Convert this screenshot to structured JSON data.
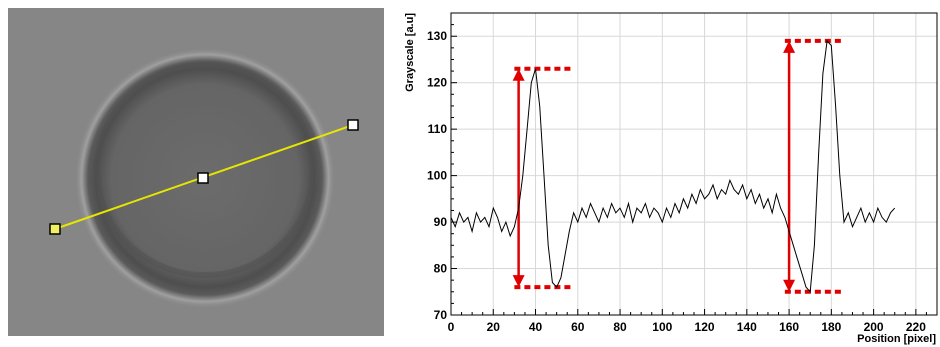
{
  "image_panel": {
    "line_color": "#e6e600",
    "handle_fill": "#ffffff",
    "end_handle_fill": "#f0f060"
  },
  "chart_data": {
    "type": "line",
    "title": "",
    "xlabel": "Position [pixel]",
    "ylabel": "Grayscale [a.u]",
    "xlim": [
      0,
      230
    ],
    "ylim": [
      70,
      135
    ],
    "x_ticks": [
      0,
      20,
      40,
      60,
      80,
      100,
      120,
      140,
      160,
      180,
      200,
      220
    ],
    "y_ticks": [
      70,
      80,
      90,
      100,
      110,
      120,
      130
    ],
    "grid": true,
    "legend": "none",
    "series": [
      {
        "x": [
          0,
          2,
          4,
          6,
          8,
          10,
          12,
          14,
          16,
          18,
          20,
          22,
          24,
          26,
          28,
          30,
          32,
          34,
          36,
          38,
          40,
          42,
          44,
          46,
          48,
          50,
          52,
          54,
          56,
          58,
          60,
          62,
          64,
          66,
          68,
          70,
          72,
          74,
          76,
          78,
          80,
          82,
          84,
          86,
          88,
          90,
          92,
          94,
          96,
          98,
          100,
          102,
          104,
          106,
          108,
          110,
          112,
          114,
          116,
          118,
          120,
          122,
          124,
          126,
          128,
          130,
          132,
          134,
          136,
          138,
          140,
          142,
          144,
          146,
          148,
          150,
          152,
          154,
          156,
          158,
          160,
          162,
          164,
          166,
          168,
          170,
          172,
          174,
          176,
          178,
          180,
          182,
          184,
          186,
          188,
          190,
          192,
          194,
          196,
          198,
          200,
          202,
          204,
          206,
          208,
          210
        ],
        "y": [
          91,
          89,
          92,
          90,
          91,
          88,
          92,
          90,
          91,
          89,
          93,
          91,
          88,
          90,
          87,
          89,
          93,
          100,
          110,
          120,
          123,
          115,
          100,
          85,
          77,
          76,
          78,
          83,
          88,
          92,
          90,
          93,
          91,
          94,
          92,
          90,
          93,
          91,
          94,
          92,
          93,
          91,
          94,
          90,
          93,
          92,
          94,
          91,
          93,
          92,
          90,
          93,
          91,
          94,
          92,
          95,
          93,
          96,
          94,
          97,
          95,
          96,
          98,
          95,
          97,
          96,
          99,
          97,
          96,
          98,
          95,
          97,
          94,
          96,
          93,
          95,
          92,
          96,
          93,
          91,
          88,
          85,
          82,
          79,
          76,
          75,
          85,
          105,
          122,
          129,
          128,
          115,
          100,
          90,
          92,
          89,
          91,
          93,
          90,
          92,
          90,
          93,
          91,
          90,
          92,
          93
        ]
      }
    ],
    "annotations": {
      "color": "#e00000",
      "peak1": {
        "top": 123,
        "bottom": 76
      },
      "peak2": {
        "top": 129,
        "bottom": 75
      }
    }
  }
}
